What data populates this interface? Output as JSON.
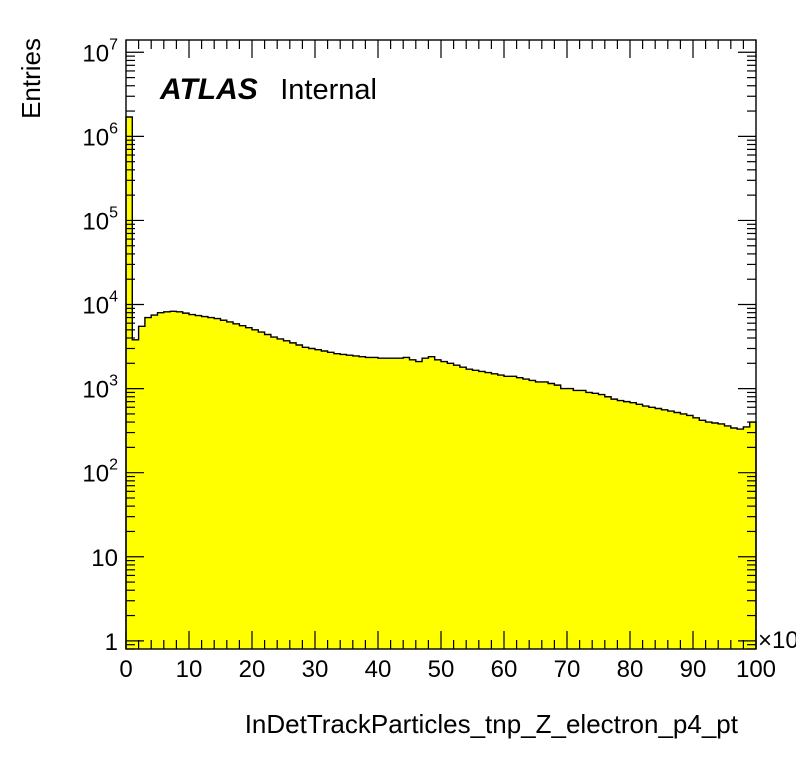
{
  "chart_data": {
    "type": "histogram",
    "xlabel": "InDetTrackParticles_tnp_Z_electron_p4_pt",
    "ylabel": "Entries",
    "x_multiplier_label": "×10",
    "xlim": [
      0,
      100
    ],
    "ylim": [
      0.8,
      14000000
    ],
    "yscale": "log",
    "fill_color": "#ffff00",
    "line_color": "#000000",
    "annotation": {
      "bold": "ATLAS",
      "normal": "Internal"
    },
    "x_ticks": [
      {
        "value": 0,
        "label": "0"
      },
      {
        "value": 10,
        "label": "10"
      },
      {
        "value": 20,
        "label": "20"
      },
      {
        "value": 30,
        "label": "30"
      },
      {
        "value": 40,
        "label": "40"
      },
      {
        "value": 50,
        "label": "50"
      },
      {
        "value": 60,
        "label": "60"
      },
      {
        "value": 70,
        "label": "70"
      },
      {
        "value": 80,
        "label": "80"
      },
      {
        "value": 90,
        "label": "90"
      },
      {
        "value": 100,
        "label": "100"
      }
    ],
    "y_ticks": [
      {
        "value": 1,
        "base": "1",
        "exp": ""
      },
      {
        "value": 10,
        "base": "10",
        "exp": ""
      },
      {
        "value": 100,
        "base": "10",
        "exp": "2"
      },
      {
        "value": 1000,
        "base": "10",
        "exp": "3"
      },
      {
        "value": 10000,
        "base": "10",
        "exp": "4"
      },
      {
        "value": 100000,
        "base": "10",
        "exp": "5"
      },
      {
        "value": 1000000,
        "base": "10",
        "exp": "6"
      },
      {
        "value": 10000000,
        "base": "10",
        "exp": "7"
      }
    ],
    "bin_low": 0,
    "bin_width": 1,
    "values": [
      1700000,
      3800,
      5500,
      7000,
      7500,
      8000,
      8200,
      8300,
      8200,
      7900,
      7600,
      7400,
      7200,
      7000,
      6800,
      6500,
      6200,
      5900,
      5600,
      5300,
      5000,
      4700,
      4400,
      4100,
      3900,
      3700,
      3500,
      3300,
      3100,
      3000,
      2900,
      2800,
      2700,
      2600,
      2550,
      2500,
      2450,
      2400,
      2350,
      2350,
      2300,
      2300,
      2300,
      2300,
      2350,
      2200,
      2100,
      2300,
      2400,
      2200,
      2100,
      2000,
      1900,
      1800,
      1700,
      1650,
      1600,
      1550,
      1500,
      1450,
      1400,
      1400,
      1350,
      1300,
      1250,
      1200,
      1200,
      1150,
      1100,
      1000,
      1000,
      950,
      950,
      900,
      880,
      850,
      800,
      750,
      720,
      700,
      680,
      650,
      620,
      600,
      580,
      560,
      540,
      520,
      500,
      480,
      450,
      420,
      400,
      390,
      380,
      360,
      340,
      330,
      350,
      400
    ]
  }
}
